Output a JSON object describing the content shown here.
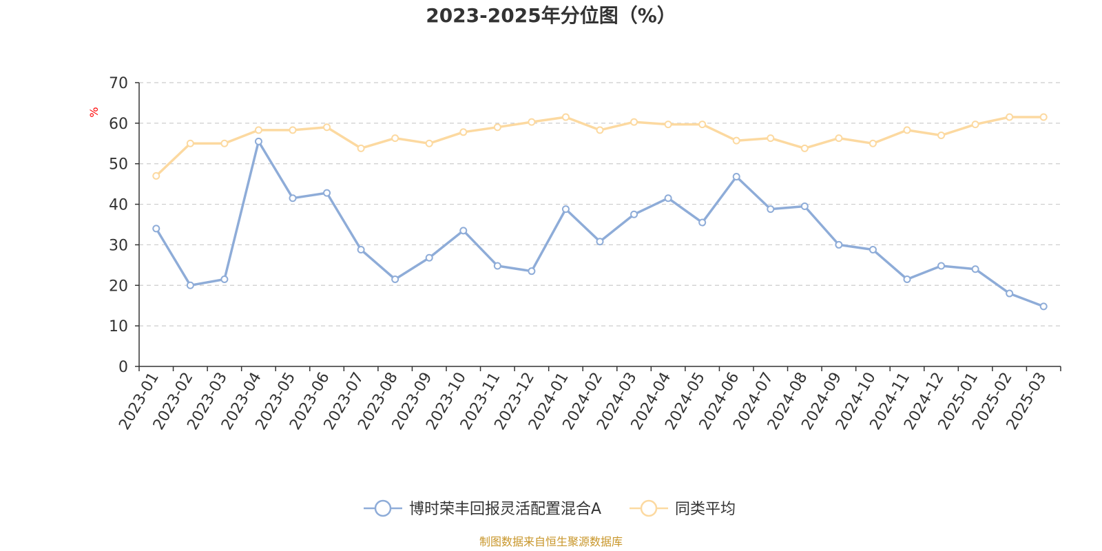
{
  "chart_data": {
    "type": "line",
    "title": "2023-2025年分位图（%）",
    "y_unit": "%",
    "ylim": [
      0,
      70
    ],
    "y_ticks": [
      0,
      10,
      20,
      30,
      40,
      50,
      60,
      70
    ],
    "grid": "horizontal dashed",
    "legend_position": "bottom-center",
    "categories": [
      "2023-01",
      "2023-02",
      "2023-03",
      "2023-04",
      "2023-05",
      "2023-06",
      "2023-07",
      "2023-08",
      "2023-09",
      "2023-10",
      "2023-11",
      "2023-12",
      "2024-01",
      "2024-02",
      "2024-03",
      "2024-04",
      "2024-05",
      "2024-06",
      "2024-07",
      "2024-08",
      "2024-09",
      "2024-10",
      "2024-11",
      "2024-12",
      "2025-01",
      "2025-02",
      "2025-03"
    ],
    "series": [
      {
        "name": "博时荣丰回报灵活配置混合A",
        "color": "#8eacd8",
        "values": [
          34.0,
          20.0,
          21.5,
          55.5,
          41.5,
          42.8,
          28.8,
          21.5,
          26.8,
          33.5,
          24.8,
          23.5,
          38.8,
          30.8,
          37.5,
          41.5,
          35.5,
          46.8,
          38.8,
          39.5,
          30.0,
          28.8,
          21.5,
          24.8,
          24.0,
          18.0,
          14.8
        ]
      },
      {
        "name": "同类平均",
        "color": "#fcd9a0",
        "values": [
          47.0,
          55.0,
          55.0,
          58.3,
          58.3,
          59.0,
          53.8,
          56.3,
          55.0,
          57.8,
          59.0,
          60.3,
          61.5,
          58.3,
          60.3,
          59.7,
          59.7,
          55.7,
          56.3,
          53.8,
          56.3,
          55.0,
          58.3,
          57.0,
          59.7,
          61.5,
          61.5
        ]
      }
    ]
  },
  "source_text": "制图数据来自恒生聚源数据库",
  "colors": {
    "axis": "#333333",
    "grid": "#cccccc",
    "unit": "#ff0000",
    "source": "#c8962a"
  }
}
